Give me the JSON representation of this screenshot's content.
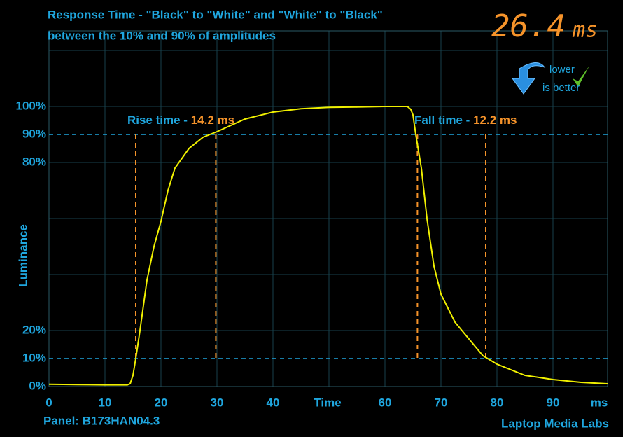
{
  "chart_data": {
    "type": "line",
    "title": "Response Time - \"Black\" to \"White\" and \"White\" to \"Black\"",
    "subtitle": "between the 10% and 90% of amplitudes",
    "result": "26.4",
    "result_unit": "ms",
    "badge": [
      "lower",
      "is better"
    ],
    "x_label": "Time",
    "x_unit": "ms",
    "y_label": "Luminance",
    "footer_left": "Panel: B173HAN04.3",
    "footer_right": "Laptop Media Labs",
    "rise_label": "Rise time - ",
    "rise_value": "14.2 ms",
    "fall_label": "Fall time - ",
    "fall_value": "12.2  ms",
    "xlim": [
      0,
      99.75
    ],
    "ylim": [
      0,
      127
    ],
    "xticks": [
      0,
      10,
      20,
      30,
      40,
      60,
      70,
      80,
      90
    ],
    "yticks": [
      {
        "value": 0,
        "label": "0%"
      },
      {
        "value": 10,
        "label": "10%"
      },
      {
        "value": 20,
        "label": "20%"
      },
      {
        "value": 80,
        "label": "80%"
      },
      {
        "value": 90,
        "label": "90%"
      },
      {
        "value": 100,
        "label": "100%"
      }
    ],
    "xgrid": [
      10,
      20,
      30,
      40,
      50,
      60,
      70,
      80,
      90
    ],
    "ygrid": [
      20,
      40,
      60,
      80,
      100,
      120
    ],
    "ref_lines": [
      10,
      90
    ],
    "rise_lines": [
      15.5,
      29.8
    ],
    "fall_lines": [
      65.8,
      78
    ],
    "grid_color": "#17414c",
    "ref_color": "#1fa6de",
    "marker_color": "#f5932a",
    "series": [
      {
        "name": "Luminance",
        "color": "#f0f000",
        "x": [
          0,
          5,
          10,
          14,
          14.5,
          15,
          15.5,
          16.25,
          17.5,
          18.75,
          20,
          21.25,
          22.5,
          25,
          27.5,
          30,
          35,
          40,
          45,
          50,
          55,
          60,
          64,
          64.6,
          65,
          65.5,
          66.5,
          67.5,
          68.75,
          70,
          72.5,
          75,
          77.5,
          80,
          85,
          90,
          95,
          99.75
        ],
        "values": [
          0.8,
          0.7,
          0.6,
          0.6,
          1,
          4,
          10,
          20,
          38,
          50,
          59,
          70,
          78,
          85,
          89,
          91,
          95.5,
          98,
          99.2,
          99.7,
          99.8,
          100,
          100,
          99,
          97,
          90,
          78,
          60,
          43,
          33,
          23,
          17,
          11,
          8,
          4,
          2.5,
          1.5,
          1
        ]
      }
    ]
  }
}
